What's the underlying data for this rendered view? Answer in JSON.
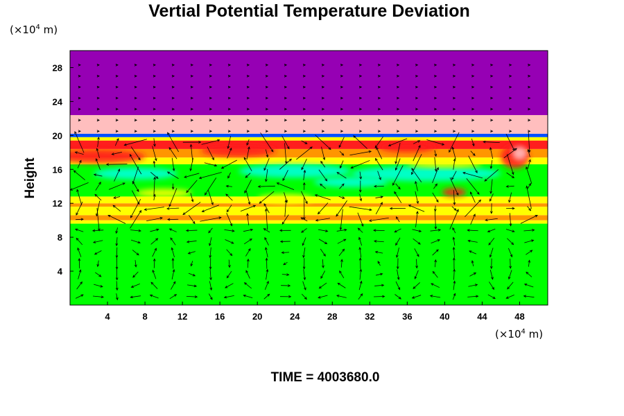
{
  "chart_data": {
    "type": "heatmap",
    "title": "Vertial Potential Temperature Deviation",
    "xlabel": "",
    "ylabel": "Height",
    "x_unit_prefix": "(×10",
    "x_unit_exp": "4",
    "x_unit_suffix": " m)",
    "y_unit_prefix": "(×10",
    "y_unit_exp": "4",
    "y_unit_suffix": " m)",
    "xlim": [
      0,
      51
    ],
    "ylim": [
      0,
      30
    ],
    "x_ticks": [
      4,
      8,
      12,
      16,
      20,
      24,
      28,
      32,
      36,
      40,
      44,
      48
    ],
    "y_ticks": [
      4,
      8,
      12,
      16,
      20,
      24,
      28
    ],
    "time_label": "TIME = 4003680.0",
    "colors": {
      "purple": "#9600b4",
      "pink": "#ffbebe",
      "red": "#ff1e1e",
      "orange": "#ff9600",
      "yellow": "#ffff00",
      "green": "#00ff00",
      "cyan": "#00ffdc",
      "blue": "#0050ff"
    },
    "layers": [
      {
        "y0": 0.0,
        "y1": 9.6,
        "color": "#00ff00"
      },
      {
        "y0": 9.6,
        "y1": 10.0,
        "color": "#ffff00"
      },
      {
        "y0": 10.0,
        "y1": 10.6,
        "color": "#ff9600"
      },
      {
        "y0": 10.6,
        "y1": 11.6,
        "color": "#ffff00"
      },
      {
        "y0": 11.6,
        "y1": 12.0,
        "color": "#ff9600"
      },
      {
        "y0": 12.0,
        "y1": 12.8,
        "color": "#ffff00"
      },
      {
        "y0": 12.8,
        "y1": 16.6,
        "color": "#00ff00"
      },
      {
        "y0": 16.6,
        "y1": 17.4,
        "color": "#ffff00"
      },
      {
        "y0": 17.4,
        "y1": 18.4,
        "color": "#ff9600"
      },
      {
        "y0": 18.4,
        "y1": 19.4,
        "color": "#ff1e1e"
      },
      {
        "y0": 19.4,
        "y1": 19.8,
        "color": "#ffff00"
      },
      {
        "y0": 19.8,
        "y1": 20.2,
        "color": "#0050ff"
      },
      {
        "y0": 20.2,
        "y1": 22.4,
        "color": "#ffbebe"
      },
      {
        "y0": 22.4,
        "y1": 30.0,
        "color": "#9600b4"
      }
    ],
    "patches": [
      {
        "x": 3.0,
        "y": 17.5,
        "rx": 5.0,
        "ry": 0.8,
        "color": "#ff1e1e"
      },
      {
        "x": 18.0,
        "y": 18.2,
        "rx": 4.0,
        "ry": 0.7,
        "color": "#ff1e1e"
      },
      {
        "x": 36.0,
        "y": 18.6,
        "rx": 3.0,
        "ry": 0.6,
        "color": "#ff1e1e"
      },
      {
        "x": 47.5,
        "y": 17.5,
        "rx": 1.5,
        "ry": 1.4,
        "color": "#ff1e1e"
      },
      {
        "x": 48.0,
        "y": 17.9,
        "rx": 0.8,
        "ry": 0.8,
        "color": "#ffbebe"
      },
      {
        "x": 41.0,
        "y": 13.3,
        "rx": 1.3,
        "ry": 0.5,
        "color": "#ff1e1e"
      },
      {
        "x": 38.0,
        "y": 15.5,
        "rx": 8.0,
        "ry": 0.9,
        "color": "#00ffdc"
      },
      {
        "x": 24.0,
        "y": 15.8,
        "rx": 6.0,
        "ry": 0.8,
        "color": "#00ffdc"
      },
      {
        "x": 7.0,
        "y": 15.5,
        "rx": 4.5,
        "ry": 0.7,
        "color": "#00ffdc"
      },
      {
        "x": 30.0,
        "y": 14.5,
        "rx": 4.0,
        "ry": 0.6,
        "color": "#00ffdc"
      },
      {
        "x": 10.0,
        "y": 13.2,
        "rx": 3.0,
        "ry": 0.5,
        "color": "#ffff00"
      },
      {
        "x": 23.0,
        "y": 12.5,
        "rx": 3.0,
        "ry": 0.6,
        "color": "#ffff00"
      },
      {
        "x": 40.0,
        "y": 16.6,
        "rx": 4.0,
        "ry": 0.4,
        "color": "#ffff00"
      }
    ]
  }
}
